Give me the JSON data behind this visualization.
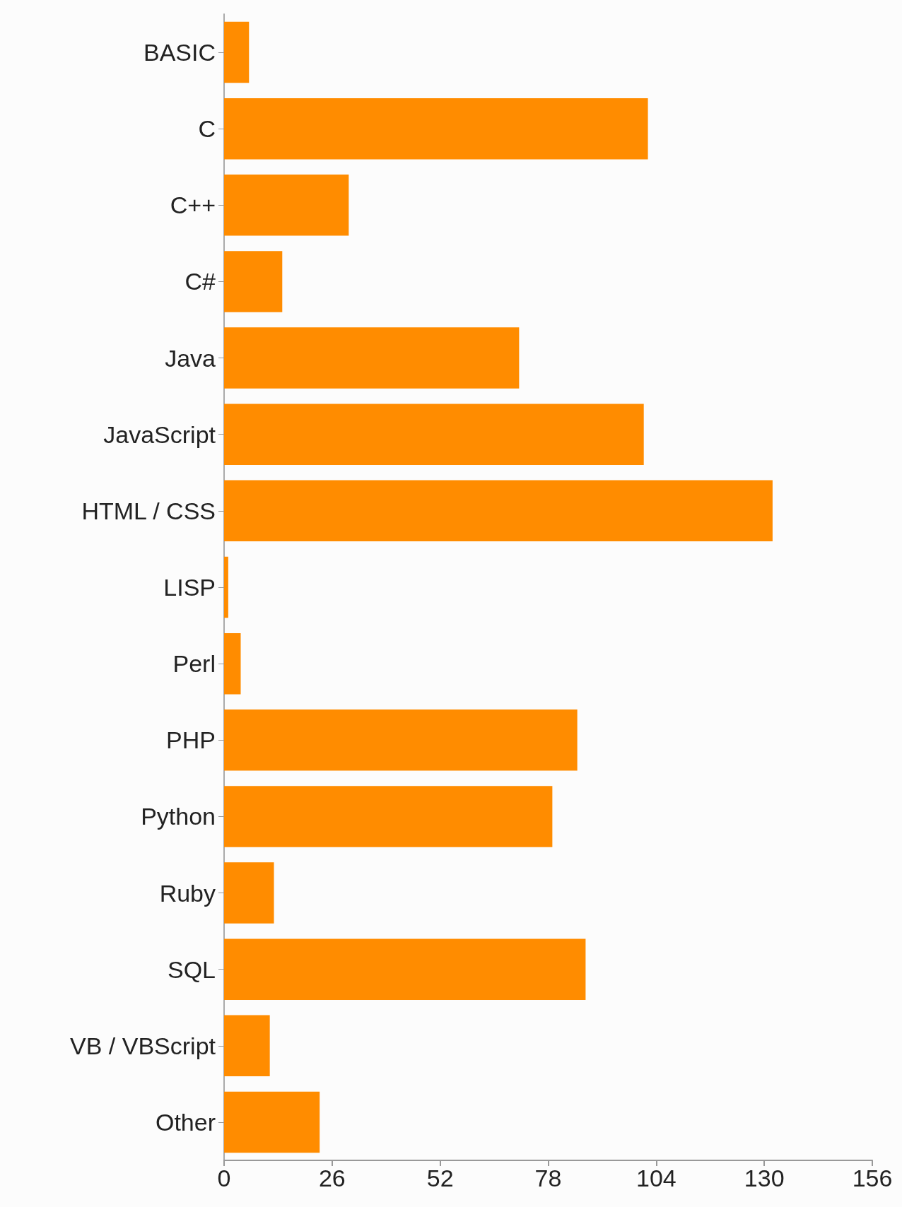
{
  "chart_data": {
    "type": "bar",
    "orientation": "horizontal",
    "categories": [
      "BASIC",
      "C",
      "C++",
      "C#",
      "Java",
      "JavaScript",
      "HTML / CSS",
      "LISP",
      "Perl",
      "PHP",
      "Python",
      "Ruby",
      "SQL",
      "VB / VBScript",
      "Other"
    ],
    "values": [
      6,
      102,
      30,
      14,
      71,
      101,
      132,
      1,
      4,
      85,
      79,
      12,
      87,
      11,
      23
    ],
    "color": "#ff8c00",
    "xlim": [
      0,
      156
    ],
    "xticks": [
      0,
      26,
      52,
      78,
      104,
      130,
      156
    ],
    "grid": false
  }
}
